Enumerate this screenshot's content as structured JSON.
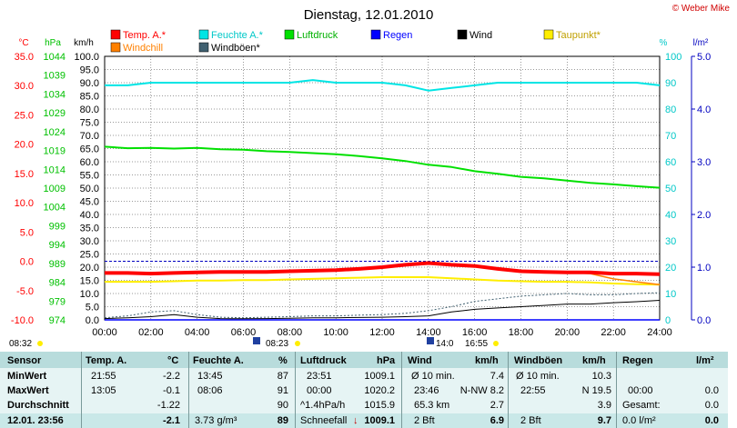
{
  "page": {
    "title": "Dienstag, 12.01.2010",
    "copyright": "© Weber Mike"
  },
  "legend": [
    {
      "label": "Temp. A.*",
      "color": "#ff0000"
    },
    {
      "label": "Feuchte A.*",
      "color": "#00e5e5"
    },
    {
      "label": "Luftdruck",
      "color": "#00e000"
    },
    {
      "label": "Regen",
      "color": "#0000ff"
    },
    {
      "label": "Wind",
      "color": "#000000"
    },
    {
      "label": "Taupunkt*",
      "color": "#ffee00"
    },
    {
      "label": "Windchill",
      "color": "#ff8000"
    },
    {
      "label": "Windböen*",
      "color": "#406070"
    }
  ],
  "axes": {
    "temp_unit": "°C",
    "pressure_unit": "hPa",
    "wind_unit": "km/h",
    "humidity_unit": "%",
    "rain_unit": "l/m²",
    "temp_ticks": [
      "35.0",
      "30.0",
      "25.0",
      "20.0",
      "15.0",
      "10.0",
      "5.0",
      "0.0",
      "-5.0",
      "-10.0"
    ],
    "pressure_ticks": [
      "1044",
      "1039",
      "1034",
      "1029",
      "1024",
      "1019",
      "1014",
      "1009",
      "1004",
      "999",
      "994",
      "989",
      "984",
      "979",
      "974"
    ],
    "wind_ticks": [
      "100.0",
      "95.0",
      "90.0",
      "85.0",
      "80.0",
      "75.0",
      "70.0",
      "65.0",
      "60.0",
      "55.0",
      "50.0",
      "45.0",
      "40.0",
      "35.0",
      "30.0",
      "25.0",
      "20.0",
      "15.0",
      "10.0",
      "5.0",
      "0.0"
    ],
    "humidity_ticks": [
      "100",
      "90",
      "80",
      "70",
      "60",
      "50",
      "40",
      "30",
      "20",
      "10",
      "0"
    ],
    "rain_ticks": [
      "5.0",
      "4.0",
      "3.0",
      "2.0",
      "1.0",
      "0.0"
    ],
    "time_ticks": [
      "00:00",
      "02:00",
      "04:00",
      "06:00",
      "08:00",
      "10:00",
      "12:00",
      "14:00",
      "16:00",
      "18:00",
      "20:00",
      "22:00",
      "24:00"
    ]
  },
  "sun_times": {
    "sunrise_left": "08:32",
    "sunrise_mark": "08:23",
    "sunset_mark": "14:0",
    "sunset": "16:55"
  },
  "chart_data": {
    "type": "line",
    "title": "Dienstag, 12.01.2010",
    "x": [
      "00:00",
      "01:00",
      "02:00",
      "03:00",
      "04:00",
      "05:00",
      "06:00",
      "07:00",
      "08:00",
      "09:00",
      "10:00",
      "11:00",
      "12:00",
      "13:00",
      "14:00",
      "15:00",
      "16:00",
      "17:00",
      "18:00",
      "19:00",
      "20:00",
      "21:00",
      "22:00",
      "23:00",
      "24:00"
    ],
    "xlim": [
      "00:00",
      "24:00"
    ],
    "series": [
      {
        "name": "Temp. A.*",
        "color": "#ff0000",
        "axis": "temp",
        "unit": "°C",
        "values": [
          -2.0,
          -2.0,
          -2.1,
          -2.0,
          -1.9,
          -1.8,
          -1.8,
          -1.8,
          -1.7,
          -1.6,
          -1.5,
          -1.3,
          -1.0,
          -0.6,
          -0.3,
          -0.6,
          -0.8,
          -1.3,
          -1.7,
          -1.8,
          -1.9,
          -1.9,
          -2.1,
          -2.1,
          -2.2
        ]
      },
      {
        "name": "Feuchte A.*",
        "color": "#00e5e5",
        "axis": "humidity",
        "unit": "%",
        "values": [
          89,
          89,
          90,
          90,
          90,
          90,
          90,
          90,
          90,
          91,
          90,
          90,
          90,
          89,
          87,
          88,
          89,
          90,
          90,
          90,
          90,
          90,
          90,
          90,
          89
        ]
      },
      {
        "name": "Luftdruck",
        "color": "#00e000",
        "axis": "pressure",
        "unit": "hPa",
        "values": [
          1020.0,
          1019.6,
          1019.7,
          1019.5,
          1019.7,
          1019.3,
          1019.2,
          1018.8,
          1018.6,
          1018.3,
          1018.0,
          1017.5,
          1016.9,
          1016.2,
          1015.2,
          1014.6,
          1013.5,
          1012.8,
          1012.0,
          1011.6,
          1011.0,
          1010.4,
          1010.0,
          1009.5,
          1009.1
        ]
      },
      {
        "name": "Taupunkt*",
        "color": "#ffee00",
        "axis": "temp",
        "unit": "°C",
        "values": [
          -3.5,
          -3.5,
          -3.5,
          -3.4,
          -3.3,
          -3.3,
          -3.2,
          -3.2,
          -3.1,
          -3.0,
          -2.9,
          -2.8,
          -2.7,
          -2.7,
          -2.7,
          -2.9,
          -3.1,
          -3.3,
          -3.4,
          -3.5,
          -3.5,
          -3.6,
          -3.8,
          -3.9,
          -4.0
        ]
      },
      {
        "name": "Windchill",
        "color": "#ff8000",
        "axis": "temp",
        "unit": "°C",
        "values": [
          -2.0,
          -2.0,
          -2.1,
          -2.0,
          -1.9,
          -1.8,
          -1.8,
          -1.8,
          -1.7,
          -1.6,
          -1.5,
          -1.3,
          -1.0,
          -0.6,
          -0.3,
          -0.6,
          -0.8,
          -1.3,
          -1.7,
          -1.8,
          -1.9,
          -2.1,
          -3.0,
          -3.5,
          -4.0
        ]
      },
      {
        "name": "Wind",
        "color": "#000000",
        "axis": "wind",
        "unit": "km/h",
        "values": [
          0.5,
          0.8,
          1.2,
          2.0,
          1.0,
          0.5,
          0.4,
          0.5,
          0.6,
          0.8,
          0.8,
          0.9,
          1.0,
          1.2,
          1.5,
          3.0,
          4.0,
          4.5,
          5.0,
          5.5,
          6.0,
          6.0,
          6.5,
          6.9,
          7.4
        ]
      },
      {
        "name": "Windböen*",
        "color": "#406070",
        "axis": "wind",
        "unit": "km/h",
        "values": [
          0.8,
          1.5,
          3.0,
          3.5,
          2.0,
          1.0,
          0.8,
          1.0,
          1.2,
          1.5,
          1.5,
          1.8,
          2.0,
          2.5,
          3.5,
          5.0,
          7.0,
          8.0,
          9.0,
          9.5,
          10.0,
          9.5,
          9.5,
          10.0,
          10.3
        ]
      },
      {
        "name": "Regen",
        "color": "#0000ff",
        "axis": "rain",
        "unit": "l/m²",
        "values": [
          0,
          0,
          0,
          0,
          0,
          0,
          0,
          0,
          0,
          0,
          0,
          0,
          0,
          0,
          0,
          0,
          0,
          0,
          0,
          0,
          0,
          0,
          0,
          0,
          0
        ]
      }
    ],
    "axis_ranges": {
      "temp": [
        -10,
        35
      ],
      "pressure": [
        974,
        1044
      ],
      "wind": [
        0,
        100
      ],
      "humidity": [
        0,
        100
      ],
      "rain": [
        0,
        5
      ]
    },
    "reference_line": {
      "label": "0.0 °C",
      "axis": "temp",
      "value": 0.0,
      "style": "dashed",
      "color": "#0000c0"
    },
    "grid": true
  },
  "stats": {
    "header": {
      "sensor": "Sensor",
      "temp": "Temp. A.",
      "temp_unit": "°C",
      "hum": "Feuchte A.",
      "hum_unit": "%",
      "press": "Luftdruck",
      "press_unit": "hPa",
      "wind": "Wind",
      "wind_unit": "km/h",
      "gust": "Windböen",
      "gust_unit": "km/h",
      "rain": "Regen",
      "rain_unit": "l/m²"
    },
    "rows": {
      "min": {
        "label": "MinWert",
        "temp_time": "21:55",
        "temp_val": "-2.2",
        "hum_time": "13:45",
        "hum_val": "87",
        "press_time": "23:51",
        "press_val": "1009.1",
        "wind_a": "Ø 10 min.",
        "wind_b": "7.4",
        "gust_a": "Ø 10 min.",
        "gust_b": "10.3"
      },
      "max": {
        "label": "MaxWert",
        "temp_time": "13:05",
        "temp_val": "-0.1",
        "hum_time": "08:06",
        "hum_val": "91",
        "press_time": "00:00",
        "press_val": "1020.2",
        "wind_a": "23:46",
        "wind_b": "N-NW 8.2",
        "gust_a": "22:55",
        "gust_b": "N 19.5",
        "rain_a": "00:00",
        "rain_b": "0.0"
      },
      "avg": {
        "label": "Durchschnitt",
        "temp_val": "-1.22",
        "hum_val": "90",
        "press_time": "^1.4hPa/h",
        "press_val": "1015.9",
        "wind_a": "65.3 km",
        "wind_b": "2.7",
        "gust_b": "3.9",
        "rain_a": "Gesamt:",
        "rain_b": "0.0"
      },
      "now": {
        "label": "12.01. 23:56",
        "temp_val": "-2.1",
        "hum_time": "3.73 g/m³",
        "hum_val": "89",
        "press_time": "Schneefall",
        "press_arrow": "↓",
        "press_val": "1009.1",
        "wind_a": "2 Bft",
        "wind_b": "6.9",
        "gust_a": "2 Bft",
        "gust_b": "9.7",
        "rain_a": "0.0 l/m²",
        "rain_b": "0.0"
      }
    }
  }
}
